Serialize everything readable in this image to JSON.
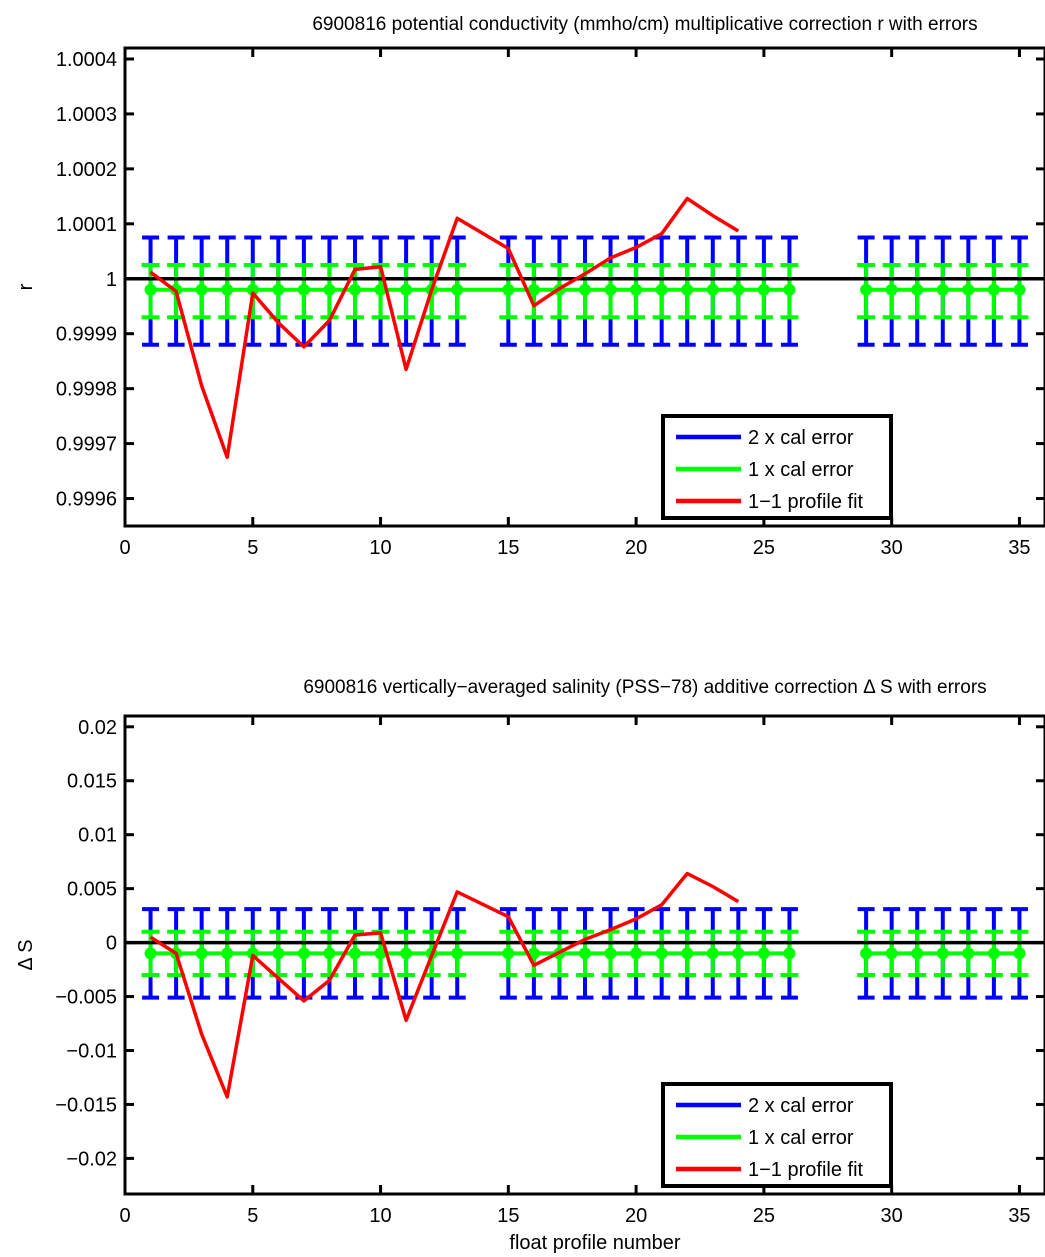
{
  "colors": {
    "two_x_cal_error": "#0000ff",
    "one_x_cal_error": "#00ff00",
    "profile_fit": "#ff0000",
    "zero_line": "#000000"
  },
  "chart_data": [
    {
      "type": "line",
      "title": "6900816 potential conductivity (mmho/cm) multiplicative correction r with errors",
      "xlabel": "",
      "ylabel": "r",
      "xlim": [
        0,
        36
      ],
      "ylim": [
        0.99955,
        1.00042
      ],
      "xticks": [
        0,
        5,
        10,
        15,
        20,
        25,
        30,
        35
      ],
      "xtick_labels": [
        "0",
        "5",
        "10",
        "15",
        "20",
        "25",
        "30",
        "35"
      ],
      "yticks": [
        0.9996,
        0.9997,
        0.9998,
        0.9999,
        1.0,
        1.0001,
        1.0002,
        1.0003,
        1.0004
      ],
      "ytick_labels": [
        "0.9996",
        "0.9997",
        "0.9998",
        "0.9999",
        "1",
        "1.0001",
        "1.0002",
        "1.0003",
        "1.0004"
      ],
      "grid": false,
      "legend_position": "bottom-right",
      "reference_line": 1.0,
      "error_bar_x": [
        1,
        2,
        3,
        4,
        5,
        6,
        7,
        8,
        9,
        10,
        11,
        12,
        13,
        15,
        16,
        17,
        18,
        19,
        20,
        21,
        22,
        23,
        24,
        25,
        26,
        29,
        30,
        31,
        32,
        33,
        34,
        35
      ],
      "series": [
        {
          "name": "2 x cal error",
          "kind": "errorbar",
          "center": 0.99998,
          "lower": 0.99988,
          "upper": 1.000075
        },
        {
          "name": "1 x cal error",
          "kind": "errorbar",
          "center": 0.99998,
          "lower": 0.99993,
          "upper": 1.000025
        },
        {
          "name": "1−1 profile fit",
          "kind": "line",
          "x": [
            1,
            2,
            3,
            4,
            5,
            6,
            7,
            8,
            9,
            10,
            11,
            12,
            13,
            15,
            16,
            17,
            18,
            19,
            20,
            21,
            22,
            23,
            24
          ],
          "y": [
            1.000012,
            0.999977,
            0.999805,
            0.999675,
            0.999974,
            0.99992,
            0.999876,
            0.999924,
            1.000017,
            1.000022,
            0.999835,
            0.99998,
            1.00011,
            1.000055,
            0.999951,
            0.999982,
            1.000009,
            1.000038,
            1.000057,
            1.000082,
            1.000146,
            1.000115,
            1.000087
          ]
        }
      ]
    },
    {
      "type": "line",
      "title": "6900816 vertically−averaged salinity (PSS−78) additive correction Δ S with errors",
      "xlabel": "float profile number",
      "ylabel": "Δ S",
      "xlim": [
        0,
        36
      ],
      "ylim": [
        -0.0233,
        0.021
      ],
      "xticks": [
        0,
        5,
        10,
        15,
        20,
        25,
        30,
        35
      ],
      "xtick_labels": [
        "0",
        "5",
        "10",
        "15",
        "20",
        "25",
        "30",
        "35"
      ],
      "yticks": [
        -0.02,
        -0.015,
        -0.01,
        -0.005,
        0,
        0.005,
        0.01,
        0.015,
        0.02
      ],
      "ytick_labels": [
        "−0.02",
        "−0.015",
        "−0.01",
        "−0.005",
        "0",
        "0.005",
        "0.01",
        "0.015",
        "0.02"
      ],
      "grid": false,
      "legend_position": "bottom-right",
      "reference_line": 0,
      "error_bar_x": [
        1,
        2,
        3,
        4,
        5,
        6,
        7,
        8,
        9,
        10,
        11,
        12,
        13,
        15,
        16,
        17,
        18,
        19,
        20,
        21,
        22,
        23,
        24,
        25,
        26,
        29,
        30,
        31,
        32,
        33,
        34,
        35
      ],
      "series": [
        {
          "name": "2 x cal error",
          "kind": "errorbar",
          "center": -0.001,
          "lower": -0.0051,
          "upper": 0.0031
        },
        {
          "name": "1 x cal error",
          "kind": "errorbar",
          "center": -0.001,
          "lower": -0.003,
          "upper": 0.001
        },
        {
          "name": "1−1 profile fit",
          "kind": "line",
          "x": [
            1,
            2,
            3,
            4,
            5,
            6,
            7,
            8,
            9,
            10,
            11,
            12,
            13,
            15,
            16,
            17,
            18,
            19,
            20,
            21,
            22,
            23,
            24
          ],
          "y": [
            0.0005,
            -0.001,
            -0.0085,
            -0.0143,
            -0.0012,
            -0.0033,
            -0.0054,
            -0.0035,
            0.0007,
            0.0009,
            -0.0072,
            -0.0012,
            0.0047,
            0.0024,
            -0.0021,
            -0.0009,
            0.0003,
            0.0012,
            0.0022,
            0.0035,
            0.0064,
            0.0052,
            0.0038
          ]
        }
      ]
    }
  ]
}
